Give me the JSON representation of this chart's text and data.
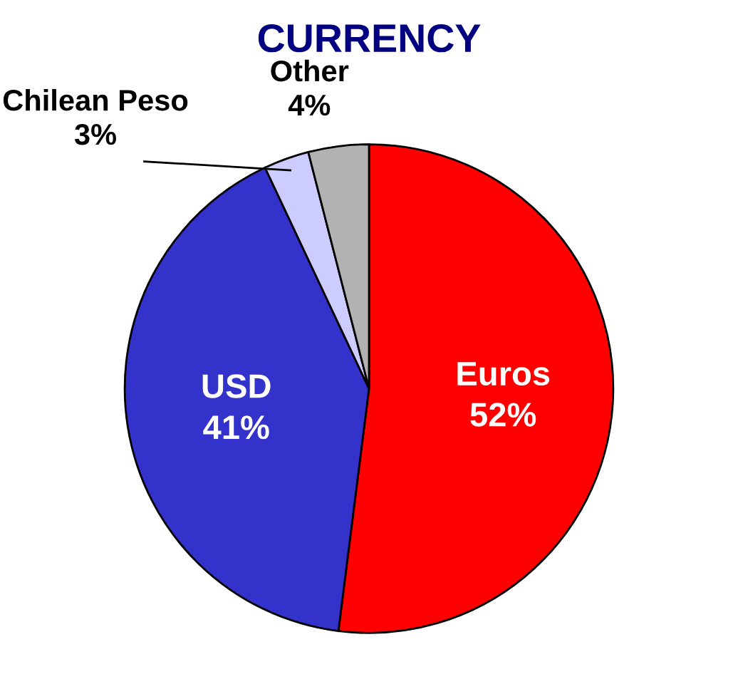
{
  "chart_data": {
    "type": "pie",
    "title": "CURRENCY",
    "categories": [
      "Euros",
      "USD",
      "Chilean Peso",
      "Other"
    ],
    "values": [
      52,
      41,
      3,
      4
    ],
    "colors": [
      "#ff0000",
      "#3333cc",
      "#ccccff",
      "#b2b2b2"
    ],
    "value_labels": [
      "52%",
      "41%",
      "3%",
      "4%"
    ],
    "legend": false
  }
}
